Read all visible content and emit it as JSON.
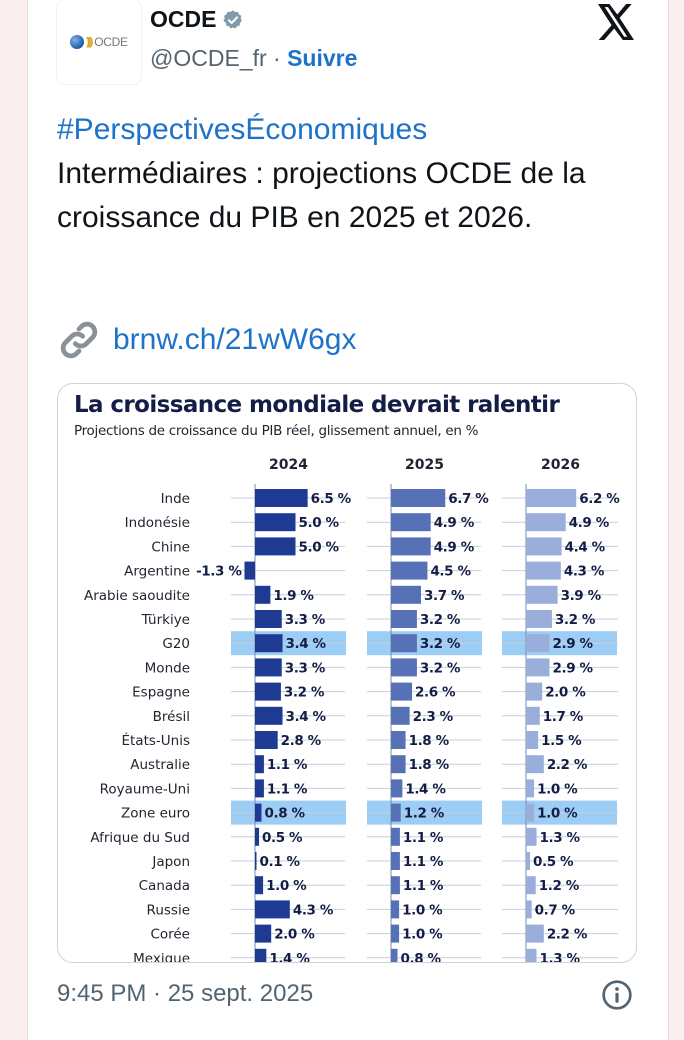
{
  "header": {
    "avatar_logo_text": "OCDE",
    "display_name": "OCDE",
    "verified_icon": "verified-badge-grey",
    "handle": "@OCDE_fr",
    "separator": "·",
    "follow_label": "Suivre",
    "platform_icon": "x-logo"
  },
  "tweet": {
    "hashtag": "#PerspectivesÉconomiques",
    "text": "Intermédiaires : projections OCDE de la croissance du PIB en 2025 et 2026.",
    "link_icon": "link-icon",
    "link_text": "brnw.ch/21wW6gx"
  },
  "footer": {
    "timestamp": "9:45 PM · 25 sept. 2025",
    "info_icon": "info-icon"
  },
  "colors": {
    "link_blue": "#1d72c9",
    "bar_2024": "#1f3a93",
    "bar_2025": "#5671b5",
    "bar_2026": "#9aaedb",
    "highlight": "#9ccdf5",
    "title_navy": "#141d45"
  },
  "chart_data": {
    "type": "bar",
    "orientation": "horizontal",
    "title": "La croissance mondiale devrait ralentir",
    "subtitle": "Projections de croissance du PIB réel, glissement annuel, en %",
    "categories": [
      "Inde",
      "Indonésie",
      "Chine",
      "Argentine",
      "Arabie saoudite",
      "Türkiye",
      "G20",
      "Monde",
      "Espagne",
      "Brésil",
      "États-Unis",
      "Australie",
      "Royaume-Uni",
      "Zone euro",
      "Afrique du Sud",
      "Japon",
      "Canada",
      "Russie",
      "Corée",
      "Mexique"
    ],
    "highlighted_categories": [
      "G20",
      "Zone euro"
    ],
    "series": [
      {
        "name": "2024",
        "values": [
          6.5,
          5.0,
          5.0,
          -1.3,
          1.9,
          3.3,
          3.4,
          3.3,
          3.2,
          3.4,
          2.8,
          1.1,
          1.1,
          0.8,
          0.5,
          0.1,
          1.0,
          4.3,
          2.0,
          1.4
        ]
      },
      {
        "name": "2025",
        "values": [
          6.7,
          4.9,
          4.9,
          4.5,
          3.7,
          3.2,
          3.2,
          3.2,
          2.6,
          2.3,
          1.8,
          1.8,
          1.4,
          1.2,
          1.1,
          1.1,
          1.1,
          1.0,
          1.0,
          0.8
        ]
      },
      {
        "name": "2026",
        "values": [
          6.2,
          4.9,
          4.4,
          4.3,
          3.9,
          3.2,
          2.9,
          2.9,
          2.0,
          1.7,
          1.5,
          2.2,
          1.0,
          1.0,
          1.3,
          0.5,
          1.2,
          0.7,
          2.2,
          1.3
        ]
      }
    ],
    "value_suffix": " %",
    "xlabel": "",
    "ylabel": "",
    "grid": true
  }
}
